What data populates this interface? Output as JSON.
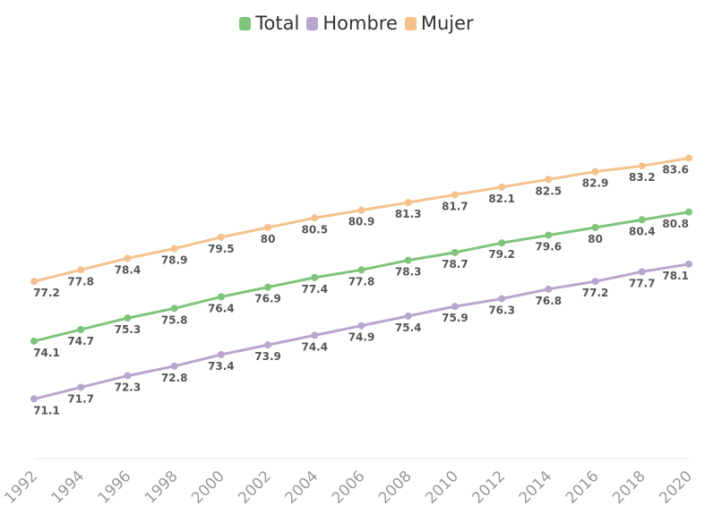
{
  "chart_data": {
    "type": "line",
    "title": "",
    "xlabel": "",
    "ylabel": "",
    "x": [
      1992,
      1994,
      1996,
      1998,
      2000,
      2002,
      2004,
      2006,
      2008,
      2010,
      2012,
      2014,
      2016,
      2018,
      2020
    ],
    "ylim": [
      68,
      88
    ],
    "grid": false,
    "legend_position": "top-center",
    "series": [
      {
        "name": "Total",
        "color": "#7ec47a",
        "values": [
          74.1,
          74.7,
          75.3,
          75.8,
          76.4,
          76.9,
          77.4,
          77.8,
          78.3,
          78.7,
          79.2,
          79.6,
          80,
          80.4,
          80.8
        ]
      },
      {
        "name": "Hombre",
        "color": "#b8a6cf",
        "values": [
          71.1,
          71.7,
          72.3,
          72.8,
          73.4,
          73.9,
          74.4,
          74.9,
          75.4,
          75.9,
          76.3,
          76.8,
          77.2,
          77.7,
          78.1
        ]
      },
      {
        "name": "Mujer",
        "color": "#f5c28e",
        "values": [
          77.2,
          77.8,
          78.4,
          78.9,
          79.5,
          80,
          80.5,
          80.9,
          81.3,
          81.7,
          82.1,
          82.5,
          82.9,
          83.2,
          83.6
        ]
      }
    ]
  }
}
